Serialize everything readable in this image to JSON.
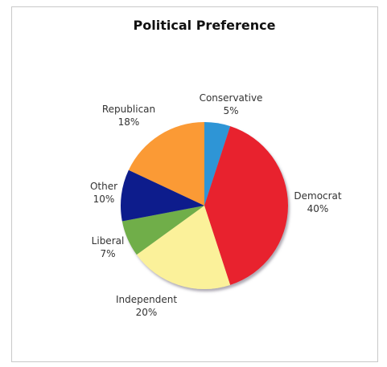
{
  "chart_data": {
    "type": "pie",
    "title": "Political Preference",
    "slices": [
      {
        "label": "Conservative",
        "value": 5,
        "value_label": "5%",
        "color": "#2f95d6"
      },
      {
        "label": "Democrat",
        "value": 40,
        "value_label": "40%",
        "color": "#e8202e"
      },
      {
        "label": "Independent",
        "value": 20,
        "value_label": "20%",
        "color": "#fbf19a"
      },
      {
        "label": "Liberal",
        "value": 7,
        "value_label": "7%",
        "color": "#6fae48"
      },
      {
        "label": "Other",
        "value": 10,
        "value_label": "10%",
        "color": "#0c1f8c"
      },
      {
        "label": "Republican",
        "value": 18,
        "value_label": "18%",
        "color": "#fb9a36"
      }
    ],
    "start_angle_deg": 0,
    "direction": "clockwise",
    "legend": "none"
  }
}
